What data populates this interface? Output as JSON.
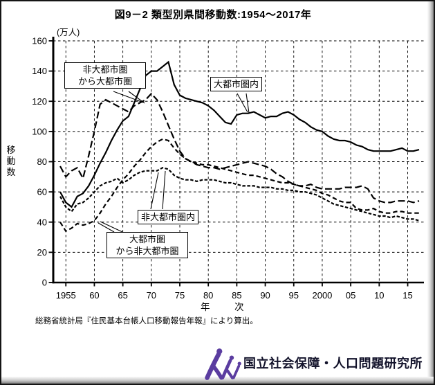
{
  "title": "図9－2 類型別県間移動数:1954～2017年",
  "y_axis": {
    "unit_label": "(万人)",
    "axis_label_chars": [
      "移",
      "動",
      "数"
    ]
  },
  "x_axis": {
    "axis_label": "年　次"
  },
  "annotations": {
    "nonmetro_to_metro": {
      "line1": "非大都市圏",
      "line2": "から大都市圏"
    },
    "metro_internal": {
      "label": "大都市圏内"
    },
    "nonmetro_internal": {
      "label": "非大都市圏内"
    },
    "metro_to_nonmetro": {
      "line1": "大都市圏",
      "line2": "から非大都市圏"
    }
  },
  "footnote": "総務省統計局『住民基本台帳人口移動報告年報』により算出。",
  "footer": {
    "organization": "国立社会保障・人口問題研究所"
  },
  "colors": {
    "line": "#000000",
    "logo_purple": "#5b3da0",
    "footer_text": "#13132b"
  },
  "chart_data": {
    "type": "line",
    "title": "図9－2 類型別県間移動数:1954～2017年",
    "xlabel": "年次",
    "ylabel": "移動数",
    "y_unit": "万人",
    "ylim": [
      0,
      160
    ],
    "xlim": [
      1954,
      2018
    ],
    "grid": true,
    "grid_style": "dashed",
    "legend_position": "inline-callouts",
    "years": [
      1954,
      1955,
      1956,
      1957,
      1958,
      1959,
      1960,
      1961,
      1962,
      1963,
      1964,
      1965,
      1966,
      1967,
      1968,
      1969,
      1970,
      1971,
      1972,
      1973,
      1974,
      1975,
      1976,
      1977,
      1978,
      1979,
      1980,
      1981,
      1982,
      1983,
      1984,
      1985,
      1986,
      1987,
      1988,
      1989,
      1990,
      1991,
      1992,
      1993,
      1994,
      1995,
      1996,
      1997,
      1998,
      1999,
      2000,
      2001,
      2002,
      2003,
      2004,
      2005,
      2006,
      2007,
      2008,
      2009,
      2010,
      2011,
      2012,
      2013,
      2014,
      2015,
      2016,
      2017
    ],
    "yticks": {
      "values": [
        0,
        20,
        40,
        60,
        80,
        100,
        120,
        140,
        160
      ],
      "labels": [
        "0",
        "20",
        "40",
        "60",
        "80",
        "100",
        "120",
        "140",
        "160"
      ]
    },
    "xticks": {
      "values": [
        1955,
        1960,
        1965,
        1970,
        1975,
        1980,
        1985,
        1990,
        1995,
        2000,
        2005,
        2010,
        2015
      ],
      "labels": [
        "1955",
        "60",
        "65",
        "70",
        "75",
        "80",
        "85",
        "90",
        "95",
        "2000",
        "05",
        "10",
        "15"
      ]
    },
    "series": [
      {
        "id": "metro-internal",
        "name": "大都市圏内",
        "style": "solid",
        "values": [
          60,
          53,
          50,
          57,
          59,
          64,
          71,
          79,
          86,
          94,
          101,
          107,
          110,
          119,
          128,
          137,
          140,
          140,
          143,
          146,
          131,
          124,
          122,
          121,
          120,
          119,
          117,
          114,
          110,
          106,
          105,
          111,
          112,
          112,
          113,
          111,
          109,
          110,
          110,
          112,
          113,
          111,
          108,
          106,
          103,
          101,
          100,
          97,
          95,
          94,
          94,
          93,
          91,
          90,
          88,
          87,
          87,
          87,
          87,
          88,
          89,
          87,
          87,
          88
        ]
      },
      {
        "id": "nonmetro-to-metro",
        "name": "非大都市圏から大都市圏",
        "style": "long-dash",
        "values": [
          77,
          70,
          74,
          76,
          69,
          84,
          100,
          118,
          121,
          119,
          117,
          115,
          113,
          117,
          119,
          121,
          125,
          121,
          113,
          104,
          95,
          87,
          82,
          80,
          78,
          77,
          76,
          76,
          75,
          76,
          77,
          78,
          79,
          80,
          79,
          78,
          77,
          75,
          72,
          70,
          67,
          65,
          64,
          64,
          65,
          63,
          62,
          62,
          62,
          62,
          63,
          63,
          63,
          64,
          62,
          56,
          54,
          53,
          53,
          54,
          54,
          54,
          53,
          54
        ]
      },
      {
        "id": "nonmetro-internal",
        "name": "非大都市圏内",
        "style": "short-dash",
        "values": [
          57,
          50,
          47,
          52,
          53,
          56,
          60,
          64,
          66,
          67,
          69,
          66,
          68,
          71,
          73,
          74,
          74,
          74,
          76,
          75,
          71,
          69,
          68,
          68,
          67,
          68,
          68,
          68,
          67,
          66,
          66,
          65,
          64,
          64,
          64,
          63,
          63,
          63,
          62,
          62,
          61,
          61,
          60,
          60,
          59,
          58,
          56,
          54,
          52,
          51,
          50,
          49,
          48,
          47,
          46,
          45,
          44,
          44,
          43,
          44,
          43,
          42,
          42,
          41
        ]
      },
      {
        "id": "metro-to-nonmetro",
        "name": "大都市圏から非大都市圏",
        "style": "medium-dash",
        "values": [
          40,
          34,
          36,
          39,
          38,
          39,
          41,
          46,
          52,
          57,
          63,
          68,
          72,
          77,
          81,
          86,
          90,
          93,
          95,
          94,
          89,
          85,
          82,
          80,
          79,
          78,
          78,
          77,
          76,
          75,
          74,
          73,
          72,
          71,
          71,
          70,
          69,
          68,
          67,
          66,
          66,
          65,
          64,
          63,
          62,
          61,
          59,
          58,
          56,
          54,
          53,
          53,
          49,
          48,
          48,
          49,
          47,
          46,
          46,
          47,
          47,
          46,
          46,
          46
        ]
      }
    ]
  }
}
